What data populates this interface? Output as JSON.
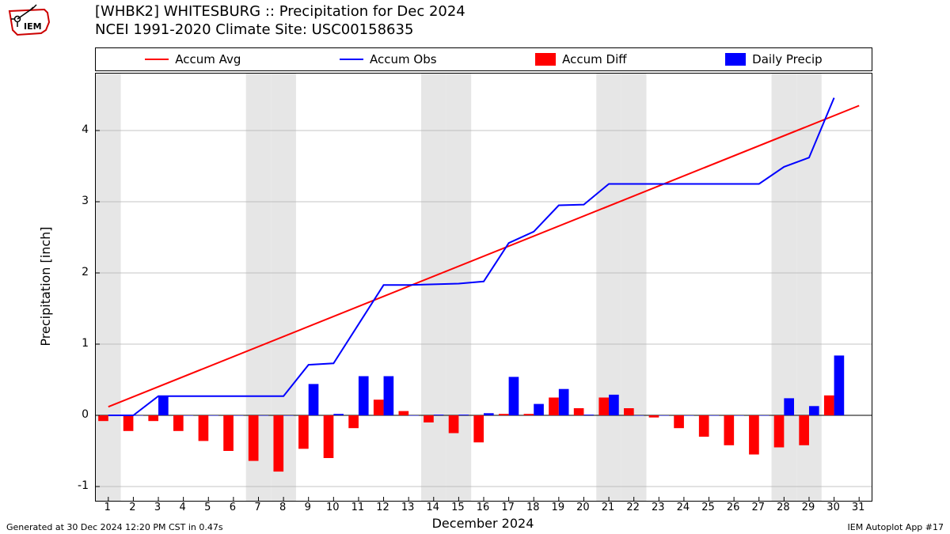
{
  "title_line1": "[WHBK2] WHITESBURG :: Precipitation for Dec 2024",
  "title_line2": "NCEI 1991-2020 Climate Site: USC00158635",
  "legend": {
    "accum_avg": {
      "label": "Accum Avg",
      "color": "#ff0000",
      "kind": "line"
    },
    "accum_obs": {
      "label": "Accum Obs",
      "color": "#0000ff",
      "kind": "line"
    },
    "accum_diff": {
      "label": "Accum Diff",
      "color": "#ff0000",
      "kind": "block"
    },
    "daily_precip": {
      "label": "Daily Precip",
      "color": "#0000ff",
      "kind": "block"
    }
  },
  "chart": {
    "type": "combo-bar-line",
    "xlabel": "December 2024",
    "ylabel": "Precipitation [inch]",
    "xlim": [
      0.5,
      31.5
    ],
    "ylim": [
      -1.2,
      4.8
    ],
    "xtick_step": 1,
    "xtick_min": 1,
    "xtick_max": 31,
    "ytick_step": 1,
    "ytick_min": -1,
    "ytick_max": 4,
    "background_color": "#ffffff",
    "grid_color": "#b0b0b0",
    "weekend_band_color": "#e6e6e6",
    "weekend_days": [
      1,
      7,
      8,
      14,
      15,
      21,
      22,
      28,
      29
    ],
    "line_width": 2,
    "bar_group_width": 0.8,
    "series": {
      "accum_avg": {
        "color": "#ff0000",
        "x": [
          1,
          31
        ],
        "y": [
          0.12,
          4.35
        ]
      },
      "accum_obs": {
        "color": "#0000ff",
        "x": [
          1,
          2,
          3,
          4,
          5,
          6,
          7,
          8,
          9,
          10,
          11,
          12,
          13,
          14,
          15,
          16,
          17,
          18,
          19,
          20,
          21,
          22,
          23,
          24,
          25,
          26,
          27,
          28,
          29,
          30
        ],
        "y": [
          0.0,
          0.0,
          0.27,
          0.27,
          0.27,
          0.27,
          0.27,
          0.27,
          0.71,
          0.73,
          1.28,
          1.83,
          1.83,
          1.84,
          1.85,
          1.88,
          2.42,
          2.58,
          2.95,
          2.96,
          3.25,
          3.25,
          3.25,
          3.25,
          3.25,
          3.25,
          3.25,
          3.49,
          3.62,
          4.46
        ]
      },
      "accum_diff": {
        "color": "#ff0000",
        "x": [
          1,
          2,
          3,
          4,
          5,
          6,
          7,
          8,
          9,
          10,
          11,
          12,
          13,
          14,
          15,
          16,
          17,
          18,
          19,
          20,
          21,
          22,
          23,
          24,
          25,
          26,
          27,
          28,
          29,
          30
        ],
        "y": [
          -0.08,
          -0.22,
          -0.08,
          -0.22,
          -0.36,
          -0.5,
          -0.64,
          -0.79,
          -0.47,
          -0.6,
          -0.18,
          0.22,
          0.06,
          -0.1,
          -0.25,
          -0.38,
          0.02,
          0.02,
          0.25,
          0.1,
          0.25,
          0.1,
          -0.03,
          -0.18,
          -0.3,
          -0.42,
          -0.55,
          -0.45,
          -0.42,
          0.28
        ]
      },
      "daily_precip": {
        "color": "#0000ff",
        "x": [
          1,
          2,
          3,
          4,
          5,
          6,
          7,
          8,
          9,
          10,
          11,
          12,
          13,
          14,
          15,
          16,
          17,
          18,
          19,
          20,
          21,
          22,
          23,
          24,
          25,
          26,
          27,
          28,
          29,
          30
        ],
        "y": [
          0.0,
          0.0,
          0.27,
          0.0,
          0.0,
          0.0,
          0.0,
          0.0,
          0.44,
          0.02,
          0.55,
          0.55,
          0.0,
          0.01,
          0.01,
          0.03,
          0.54,
          0.16,
          0.37,
          0.01,
          0.29,
          0.0,
          0.0,
          0.0,
          0.0,
          0.0,
          0.0,
          0.24,
          0.13,
          0.84
        ]
      }
    }
  },
  "footer_left": "Generated at 30 Dec 2024 12:20 PM CST in 0.47s",
  "footer_right": "IEM Autoplot App #17"
}
